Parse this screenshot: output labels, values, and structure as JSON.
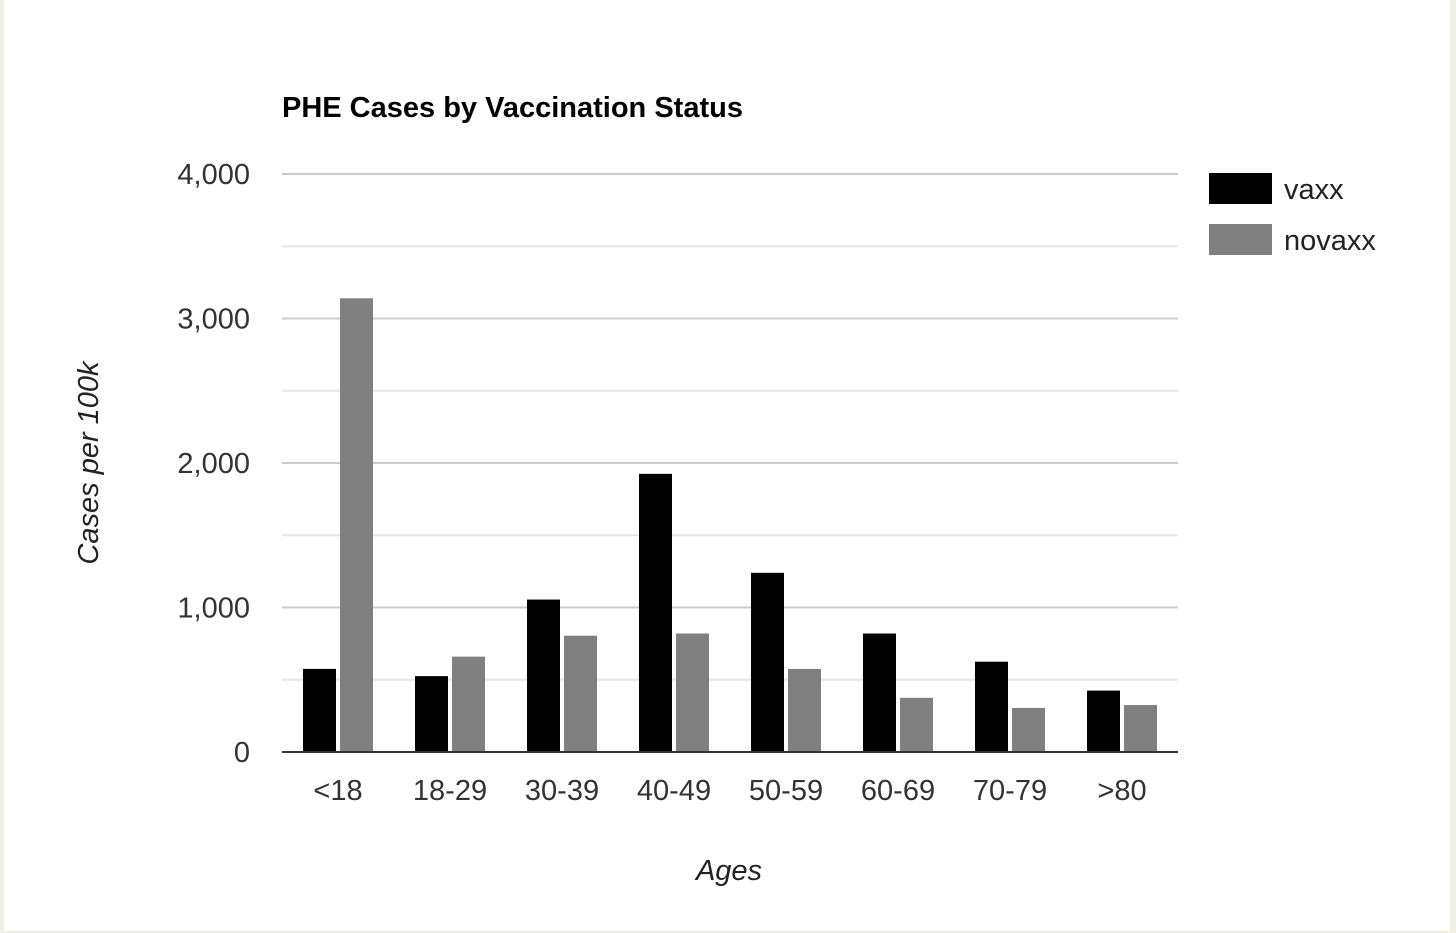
{
  "colors": {
    "page_border": "#f1efe4",
    "background": "#ffffff",
    "gridline_major": "#cccccc",
    "gridline_minor": "#e6e6e6",
    "baseline": "#333333"
  },
  "chart_data": {
    "type": "bar",
    "title": "PHE Cases by Vaccination Status",
    "xlabel": "Ages",
    "ylabel": "Cases per 100k",
    "categories": [
      "<18",
      "18-29",
      "30-39",
      "40-49",
      "50-59",
      "60-69",
      "70-79",
      ">80"
    ],
    "series": [
      {
        "name": "vaxx",
        "color": "#000000",
        "values": [
          575,
          525,
          1055,
          1925,
          1240,
          820,
          625,
          425
        ]
      },
      {
        "name": "novaxx",
        "color": "#808080",
        "values": [
          3140,
          660,
          805,
          820,
          575,
          375,
          305,
          325
        ]
      }
    ],
    "ylim": [
      0,
      4000
    ],
    "yticks": [
      0,
      1000,
      2000,
      3000,
      4000
    ],
    "ytick_labels": [
      "0",
      "1,000",
      "2,000",
      "3,000",
      "4,000"
    ],
    "grid": true,
    "minor_grid": true,
    "legend_position": "right"
  }
}
